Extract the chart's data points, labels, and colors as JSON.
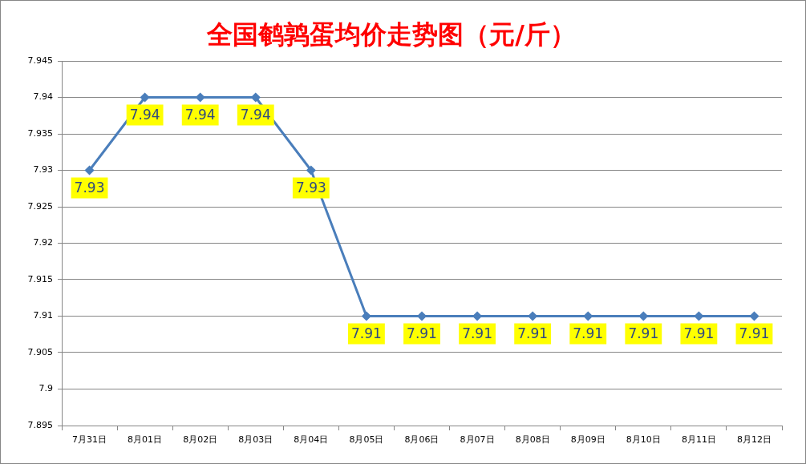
{
  "chart_data": {
    "type": "line",
    "title": "全国鹌鹑蛋均价走势图（元/斤）",
    "categories": [
      "7月31日",
      "8月01日",
      "8月02日",
      "8月03日",
      "8月04日",
      "8月05日",
      "8月06日",
      "8月07日",
      "8月08日",
      "8月09日",
      "8月10日",
      "8月11日",
      "8月12日"
    ],
    "values": [
      7.93,
      7.94,
      7.94,
      7.94,
      7.93,
      7.91,
      7.91,
      7.91,
      7.91,
      7.91,
      7.91,
      7.91,
      7.91
    ],
    "color": "#4a7ebb",
    "ylim": [
      7.895,
      7.945
    ],
    "yticks": [
      7.895,
      7.9,
      7.905,
      7.91,
      7.915,
      7.92,
      7.925,
      7.93,
      7.935,
      7.94,
      7.945
    ],
    "grid": "y",
    "marker": "diamond",
    "line_style": "solid",
    "data_labels": true
  }
}
